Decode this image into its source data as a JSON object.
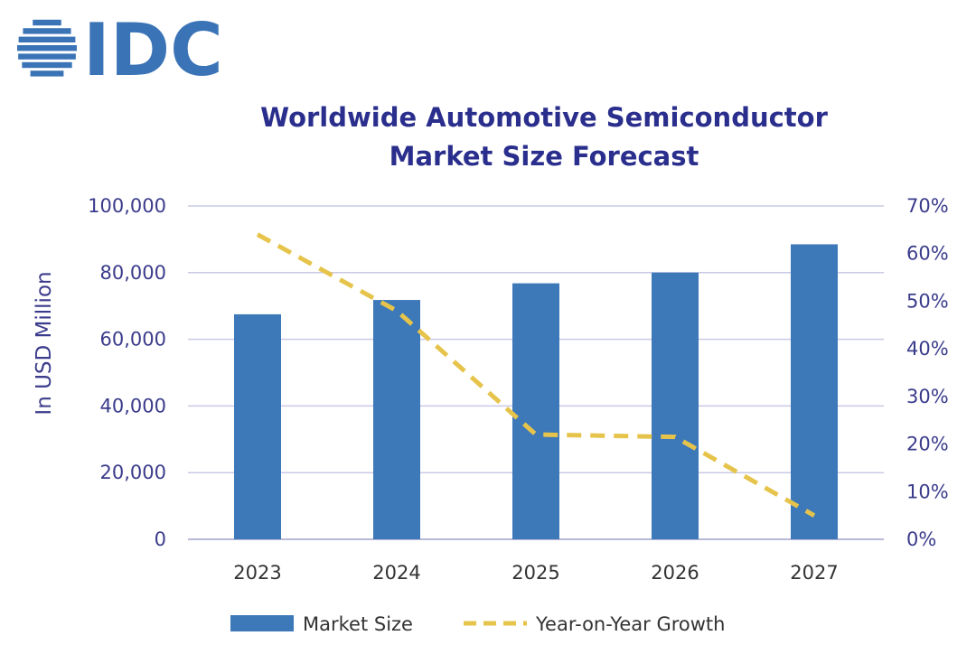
{
  "logo": {
    "text": "IDC",
    "color": "#3b74b6"
  },
  "colors": {
    "title": "#2a2e8c",
    "axis_text": "#3b3b8c",
    "bar": "#3d78b8",
    "line": "#e6c44b",
    "grid": "#c9c9e6",
    "axis": "#b8b8d8"
  },
  "chart_data": {
    "type": "bar",
    "title_line1": "Worldwide Automotive Semiconductor",
    "title_line2": "Market Size Forecast",
    "ylabel": "In USD Million",
    "categories": [
      "2023",
      "2024",
      "2025",
      "2026",
      "2027"
    ],
    "ylim": [
      0,
      100000
    ],
    "y2lim": [
      0,
      70
    ],
    "y_ticks": [
      "0",
      "20,000",
      "40,000",
      "60,000",
      "80,000",
      "100,000"
    ],
    "y2_ticks": [
      "0%",
      "10%",
      "20%",
      "30%",
      "40%",
      "50%",
      "60%",
      "70%"
    ],
    "grid": true,
    "legend_position": "bottom",
    "series": [
      {
        "name": "Market Size",
        "type": "bar",
        "axis": "left",
        "values": [
          67500,
          71800,
          76800,
          80000,
          88500
        ]
      },
      {
        "name": "Year-on-Year Growth",
        "type": "line",
        "style": "dashed",
        "axis": "right",
        "values": [
          64,
          48,
          22,
          21.5,
          5
        ]
      }
    ]
  }
}
